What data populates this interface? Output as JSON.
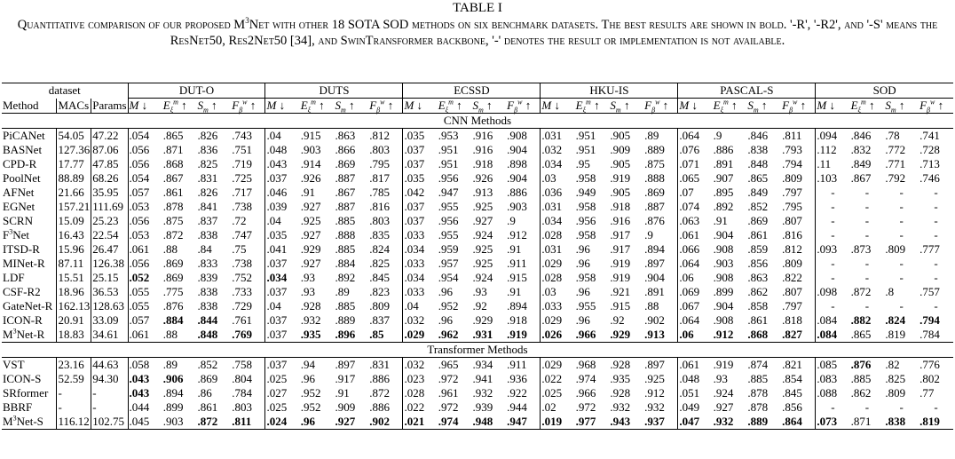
{
  "table_label": "TABLE I",
  "caption": "Quantitative comparison of our proposed M3Net with other 18 SOTA SOD methods on six benchmark datasets. The best results are shown in bold. '-R', '-R2', and '-S' means the ResNet50, Res2Net50 [34], and SwinTransformer backbone, '-' denotes the result or implementation is not available.",
  "header": {
    "dataset_label": "dataset",
    "method_label": "Method",
    "macs_label": "MACs",
    "params_label": "Params",
    "datasets": [
      "DUT-O",
      "DUTS",
      "ECSSD",
      "HKU-IS",
      "PASCAL-S",
      "SOD"
    ],
    "metrics": [
      "M ↓",
      "E_ξ^m ↑",
      "S_m ↑",
      "F_β^w ↑"
    ]
  },
  "sections": [
    {
      "title": "CNN Methods",
      "rows": [
        {
          "method": "PiCANet",
          "macs": "54.05",
          "params": "47.22",
          "v": [
            ".054",
            ".865",
            ".826",
            ".743",
            ".04",
            ".915",
            ".863",
            ".812",
            ".035",
            ".953",
            ".916",
            ".908",
            ".031",
            ".951",
            ".905",
            ".89",
            ".064",
            ".9",
            ".846",
            ".811",
            ".094",
            ".846",
            ".78",
            ".741"
          ]
        },
        {
          "method": "BASNet",
          "macs": "127.36",
          "params": "87.06",
          "v": [
            ".056",
            ".871",
            ".836",
            ".751",
            ".048",
            ".903",
            ".866",
            ".803",
            ".037",
            ".951",
            ".916",
            ".904",
            ".032",
            ".951",
            ".909",
            ".889",
            ".076",
            ".886",
            ".838",
            ".793",
            ".112",
            ".832",
            ".772",
            ".728"
          ]
        },
        {
          "method": "CPD-R",
          "macs": "17.77",
          "params": "47.85",
          "v": [
            ".056",
            ".868",
            ".825",
            ".719",
            ".043",
            ".914",
            ".869",
            ".795",
            ".037",
            ".951",
            ".918",
            ".898",
            ".034",
            ".95",
            ".905",
            ".875",
            ".071",
            ".891",
            ".848",
            ".794",
            ".11",
            ".849",
            ".771",
            ".713"
          ]
        },
        {
          "method": "PoolNet",
          "macs": "88.89",
          "params": "68.26",
          "v": [
            ".054",
            ".867",
            ".831",
            ".725",
            ".037",
            ".926",
            ".887",
            ".817",
            ".035",
            ".956",
            ".926",
            ".904",
            ".03",
            ".958",
            ".919",
            ".888",
            ".065",
            ".907",
            ".865",
            ".809",
            ".103",
            ".867",
            ".792",
            ".746"
          ]
        },
        {
          "method": "AFNet",
          "macs": "21.66",
          "params": "35.95",
          "v": [
            ".057",
            ".861",
            ".826",
            ".717",
            ".046",
            ".91",
            ".867",
            ".785",
            ".042",
            ".947",
            ".913",
            ".886",
            ".036",
            ".949",
            ".905",
            ".869",
            ".07",
            ".895",
            ".849",
            ".797",
            "-",
            "-",
            "-",
            "-"
          ]
        },
        {
          "method": "EGNet",
          "macs": "157.21",
          "params": "111.69",
          "v": [
            ".053",
            ".878",
            ".841",
            ".738",
            ".039",
            ".927",
            ".887",
            ".816",
            ".037",
            ".955",
            ".925",
            ".903",
            ".031",
            ".958",
            ".918",
            ".887",
            ".074",
            ".892",
            ".852",
            ".795",
            "-",
            "-",
            "-",
            "-"
          ]
        },
        {
          "method": "SCRN",
          "macs": "15.09",
          "params": "25.23",
          "v": [
            ".056",
            ".875",
            ".837",
            ".72",
            ".04",
            ".925",
            ".885",
            ".803",
            ".037",
            ".956",
            ".927",
            ".9",
            ".034",
            ".956",
            ".916",
            ".876",
            ".063",
            ".91",
            ".869",
            ".807",
            "-",
            "-",
            "-",
            "-"
          ]
        },
        {
          "method": "F³Net",
          "macs": "16.43",
          "params": "22.54",
          "v": [
            ".053",
            ".872",
            ".838",
            ".747",
            ".035",
            ".927",
            ".888",
            ".835",
            ".033",
            ".955",
            ".924",
            ".912",
            ".028",
            ".958",
            ".917",
            ".9",
            ".061",
            ".904",
            ".861",
            ".816",
            "-",
            "-",
            "-",
            "-"
          ]
        },
        {
          "method": "ITSD-R",
          "macs": "15.96",
          "params": "26.47",
          "v": [
            ".061",
            ".88",
            ".84",
            ".75",
            ".041",
            ".929",
            ".885",
            ".824",
            ".034",
            ".959",
            ".925",
            ".91",
            ".031",
            ".96",
            ".917",
            ".894",
            ".066",
            ".908",
            ".859",
            ".812",
            ".093",
            ".873",
            ".809",
            ".777"
          ]
        },
        {
          "method": "MINet-R",
          "macs": "87.11",
          "params": "126.38",
          "v": [
            ".056",
            ".869",
            ".833",
            ".738",
            ".037",
            ".927",
            ".884",
            ".825",
            ".033",
            ".957",
            ".925",
            ".911",
            ".029",
            ".96",
            ".919",
            ".897",
            ".064",
            ".903",
            ".856",
            ".809",
            "-",
            "-",
            "-",
            "-"
          ]
        },
        {
          "method": "LDF",
          "macs": "15.51",
          "params": "25.15",
          "v": [
            ".052",
            ".869",
            ".839",
            ".752",
            ".034",
            ".93",
            ".892",
            ".845",
            ".034",
            ".954",
            ".924",
            ".915",
            ".028",
            ".958",
            ".919",
            ".904",
            ".06",
            ".908",
            ".863",
            ".822",
            "-",
            "-",
            "-",
            "-"
          ],
          "bold": [
            0,
            4
          ]
        },
        {
          "method": "CSF-R2",
          "macs": "18.96",
          "params": "36.53",
          "v": [
            ".055",
            ".775",
            ".838",
            ".733",
            ".037",
            ".93",
            ".89",
            ".823",
            ".033",
            ".96",
            ".93",
            ".91",
            ".03",
            ".96",
            ".921",
            ".891",
            ".069",
            ".899",
            ".862",
            ".807",
            ".098",
            ".872",
            ".8",
            ".757"
          ]
        },
        {
          "method": "GateNet-R",
          "macs": "162.13",
          "params": "128.63",
          "v": [
            ".055",
            ".876",
            ".838",
            ".729",
            ".04",
            ".928",
            ".885",
            ".809",
            ".04",
            ".952",
            ".92",
            ".894",
            ".033",
            ".955",
            ".915",
            ".88",
            ".067",
            ".904",
            ".858",
            ".797",
            "-",
            "-",
            "-",
            "-"
          ]
        },
        {
          "method": "ICON-R",
          "macs": "20.91",
          "params": "33.09",
          "v": [
            ".057",
            ".884",
            ".844",
            ".761",
            ".037",
            ".932",
            ".889",
            ".837",
            ".032",
            ".96",
            ".929",
            ".918",
            ".029",
            ".96",
            ".92",
            ".902",
            ".064",
            ".908",
            ".861",
            ".818",
            ".084",
            ".882",
            ".824",
            ".794"
          ],
          "bold": [
            1,
            2,
            21,
            22,
            23
          ]
        },
        {
          "method": "M³Net-R",
          "macs": "18.83",
          "params": "34.61",
          "v": [
            ".061",
            ".88",
            ".848",
            ".769",
            ".037",
            ".935",
            ".896",
            ".85",
            ".029",
            ".962",
            ".931",
            ".919",
            ".026",
            ".966",
            ".929",
            ".913",
            ".06",
            ".912",
            ".868",
            ".827",
            ".084",
            ".865",
            ".819",
            ".784"
          ],
          "bold": [
            2,
            3,
            5,
            6,
            7,
            8,
            9,
            10,
            11,
            12,
            13,
            14,
            15,
            16,
            17,
            18,
            19,
            20
          ]
        }
      ]
    },
    {
      "title": "Transformer Methods",
      "rows": [
        {
          "method": "VST",
          "macs": "23.16",
          "params": "44.63",
          "v": [
            ".058",
            ".89",
            ".852",
            ".758",
            ".037",
            ".94",
            ".897",
            ".831",
            ".032",
            ".965",
            ".934",
            ".911",
            ".029",
            ".968",
            ".928",
            ".897",
            ".061",
            ".919",
            ".874",
            ".821",
            ".085",
            ".876",
            ".82",
            ".776"
          ],
          "bold": [
            21
          ]
        },
        {
          "method": "ICON-S",
          "macs": "52.59",
          "params": "94.30",
          "v": [
            ".043",
            ".906",
            ".869",
            ".804",
            ".025",
            ".96",
            ".917",
            ".886",
            ".023",
            ".972",
            ".941",
            ".936",
            ".022",
            ".974",
            ".935",
            ".925",
            ".048",
            ".93",
            ".885",
            ".854",
            ".083",
            ".885",
            ".825",
            ".802"
          ],
          "bold": [
            0,
            1
          ]
        },
        {
          "method": "SRformer",
          "macs": "-",
          "params": "-",
          "v": [
            ".043",
            ".894",
            ".86",
            ".784",
            ".027",
            ".952",
            ".91",
            ".872",
            ".028",
            ".961",
            ".932",
            ".922",
            ".025",
            ".966",
            ".928",
            ".912",
            ".051",
            ".924",
            ".878",
            ".845",
            ".088",
            ".862",
            ".809",
            ".77"
          ],
          "bold": [
            0
          ]
        },
        {
          "method": "BBRF",
          "macs": "-",
          "params": "-",
          "v": [
            ".044",
            ".899",
            ".861",
            ".803",
            ".025",
            ".952",
            ".909",
            ".886",
            ".022",
            ".972",
            ".939",
            ".944",
            ".02",
            ".972",
            ".932",
            ".932",
            ".049",
            ".927",
            ".878",
            ".856",
            "-",
            "-",
            "-",
            "-"
          ]
        },
        {
          "method": "M³Net-S",
          "macs": "116.12",
          "params": "102.75",
          "v": [
            ".045",
            ".903",
            ".872",
            ".811",
            ".024",
            ".96",
            ".927",
            ".902",
            ".021",
            ".974",
            ".948",
            ".947",
            ".019",
            ".977",
            ".943",
            ".937",
            ".047",
            ".932",
            ".889",
            ".864",
            ".073",
            ".871",
            ".838",
            ".819"
          ],
          "bold": [
            2,
            3,
            4,
            5,
            6,
            7,
            8,
            9,
            10,
            11,
            12,
            13,
            14,
            15,
            16,
            17,
            18,
            19,
            20,
            22,
            23
          ]
        }
      ]
    }
  ]
}
